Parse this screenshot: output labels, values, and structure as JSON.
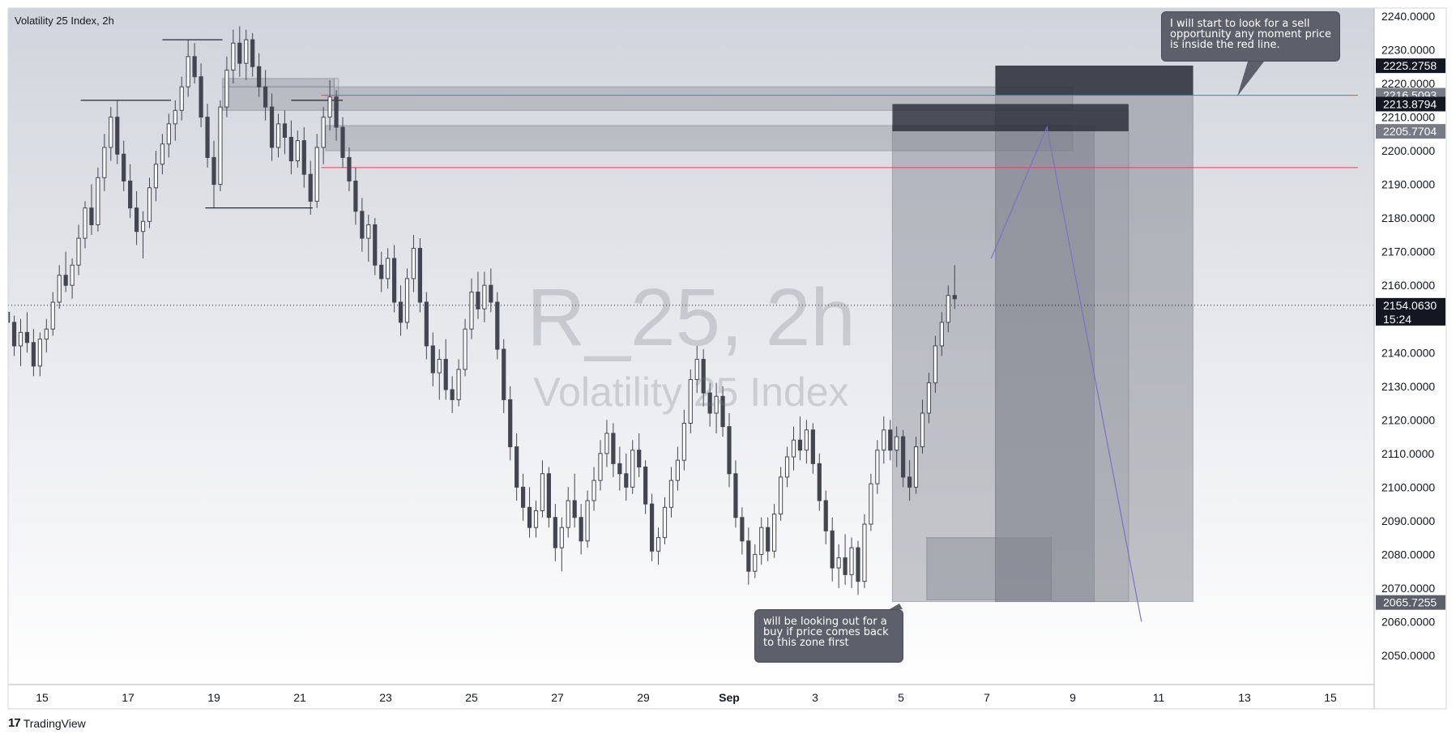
{
  "symbol_title": "Volatility 25 Index, 2h",
  "watermark": {
    "symbol": "R_25, 2h",
    "description": "Volatility 25 Index"
  },
  "brand": "TradingView",
  "colors": {
    "background_top": "#d1d4dc",
    "background_bottom": "#ffffff",
    "candle": "#434651",
    "zone_fill": "#787b86",
    "dark_box": "#2a2e39",
    "red_line": "#e04a4a",
    "projection_line": "#7e6fc9",
    "note_bg": "#5d606b"
  },
  "chart_data": {
    "type": "candlestick",
    "title": "Volatility 25 Index, 2h",
    "ylim": [
      2042,
      2244
    ],
    "y_ticks": [
      "2240.0000",
      "2230.0000",
      "2220.0000",
      "2210.0000",
      "2200.0000",
      "2190.0000",
      "2180.0000",
      "2170.0000",
      "2160.0000",
      "2140.0000",
      "2130.0000",
      "2120.0000",
      "2110.0000",
      "2100.0000",
      "2090.0000",
      "2080.0000",
      "2070.0000",
      "2060.0000",
      "2050.0000"
    ],
    "x_ticks": [
      "15",
      "17",
      "19",
      "21",
      "23",
      "25",
      "27",
      "29",
      "Sep",
      "3",
      "5",
      "7",
      "9",
      "11",
      "13",
      "15"
    ],
    "x_range_days": [
      14.2,
      46.3
    ],
    "price_badges": [
      {
        "price": 2225.2758,
        "label": "2225.2758",
        "color": "#131722"
      },
      {
        "price": 2216.5093,
        "label": "2216.5093",
        "color": "#787b86"
      },
      {
        "price": 2213.8794,
        "label": "2213.8794",
        "color": "#131722"
      },
      {
        "price": 2205.7704,
        "label": "2205.7704",
        "color": "#787b86"
      },
      {
        "price": 2154.063,
        "label": "2154.0630",
        "color": "#131722",
        "sub": "15:24"
      },
      {
        "price": 2065.7255,
        "label": "2065.7255",
        "color": "#5d606b"
      }
    ],
    "last_price": 2154.063,
    "horizontal_lines": [
      {
        "price": 2216.5,
        "color": "red"
      },
      {
        "price": 2195.0,
        "color": "red"
      }
    ],
    "swing_levels": [
      {
        "price": 2233.0,
        "from": 17.8,
        "to": 19.2
      },
      {
        "price": 2215.0,
        "from": 15.9,
        "to": 18.0
      },
      {
        "price": 2183.0,
        "from": 18.8,
        "to": 21.3
      },
      {
        "price": 2215.0,
        "from": 20.8,
        "to": 22.0
      }
    ],
    "zones": [
      {
        "top": 2219.0,
        "bottom": 2212.0,
        "from": 19.2,
        "to": 39.0,
        "opacity": 0.32
      },
      {
        "top": 2221.5,
        "bottom": 2219.0,
        "from": 19.2,
        "to": 21.8,
        "opacity": 0.32
      },
      {
        "top": 2221.5,
        "bottom": 2212.0,
        "from": 21.8,
        "to": 21.9,
        "opacity": 0.1
      },
      {
        "top": 2207.5,
        "bottom": 2200.0,
        "from": 21.6,
        "to": 39.0,
        "opacity": 0.32
      },
      {
        "top": 2085.0,
        "bottom": 2066.5,
        "from": 35.6,
        "to": 38.5,
        "opacity": 0.36
      },
      {
        "top": 2207.5,
        "bottom": 2066.0,
        "from": 34.8,
        "to": 39.5,
        "opacity": 0.4
      },
      {
        "top": 2225.2,
        "bottom": 2066.0,
        "from": 37.2,
        "to": 41.8,
        "opacity": 0.45
      },
      {
        "top": 2212.0,
        "bottom": 2066.0,
        "from": 37.2,
        "to": 40.3,
        "opacity": 0.2
      }
    ],
    "dark_boxes": [
      {
        "top": 2225.3,
        "bottom": 2216.5,
        "from": 37.2,
        "to": 41.8
      },
      {
        "top": 2213.9,
        "bottom": 2205.8,
        "from": 34.8,
        "to": 40.3
      }
    ],
    "projection": [
      {
        "x": 37.1,
        "y": 2168.0
      },
      {
        "x": 38.4,
        "y": 2207.0
      },
      {
        "x": 40.6,
        "y": 2060.0
      }
    ],
    "candles": [
      [
        14.2,
        2152,
        2154,
        2147,
        2149
      ],
      [
        14.35,
        2149,
        2151,
        2139,
        2142
      ],
      [
        14.5,
        2142,
        2150,
        2136,
        2146
      ],
      [
        14.65,
        2146,
        2152,
        2140,
        2143
      ],
      [
        14.8,
        2143,
        2147,
        2133,
        2136
      ],
      [
        14.95,
        2136,
        2146,
        2133,
        2144
      ],
      [
        15.1,
        2144,
        2150,
        2140,
        2147
      ],
      [
        15.25,
        2147,
        2158,
        2145,
        2155
      ],
      [
        15.4,
        2155,
        2166,
        2153,
        2163
      ],
      [
        15.55,
        2163,
        2170,
        2158,
        2160
      ],
      [
        15.7,
        2160,
        2168,
        2156,
        2166
      ],
      [
        15.85,
        2166,
        2178,
        2163,
        2174
      ],
      [
        16.0,
        2174,
        2185,
        2171,
        2183
      ],
      [
        16.15,
        2183,
        2190,
        2175,
        2178
      ],
      [
        16.3,
        2178,
        2195,
        2176,
        2192
      ],
      [
        16.45,
        2192,
        2205,
        2188,
        2201
      ],
      [
        16.6,
        2201,
        2213,
        2197,
        2210
      ],
      [
        16.75,
        2210,
        2215,
        2196,
        2199
      ],
      [
        16.9,
        2199,
        2203,
        2188,
        2191
      ],
      [
        17.05,
        2191,
        2196,
        2180,
        2183
      ],
      [
        17.2,
        2183,
        2188,
        2172,
        2176
      ],
      [
        17.35,
        2176,
        2182,
        2168,
        2179
      ],
      [
        17.5,
        2179,
        2192,
        2177,
        2189
      ],
      [
        17.65,
        2189,
        2200,
        2185,
        2196
      ],
      [
        17.8,
        2196,
        2205,
        2193,
        2202
      ],
      [
        17.95,
        2202,
        2211,
        2198,
        2208
      ],
      [
        18.1,
        2208,
        2215,
        2203,
        2212
      ],
      [
        18.25,
        2212,
        2222,
        2209,
        2219
      ],
      [
        18.4,
        2219,
        2233,
        2216,
        2228
      ],
      [
        18.55,
        2228,
        2232,
        2220,
        2222
      ],
      [
        18.7,
        2222,
        2226,
        2207,
        2210
      ],
      [
        18.85,
        2210,
        2214,
        2195,
        2198
      ],
      [
        19.0,
        2198,
        2203,
        2183,
        2190
      ],
      [
        19.15,
        2190,
        2215,
        2188,
        2213
      ],
      [
        19.3,
        2213,
        2228,
        2210,
        2224
      ],
      [
        19.45,
        2224,
        2236,
        2220,
        2232
      ],
      [
        19.6,
        2232,
        2237,
        2222,
        2226
      ],
      [
        19.75,
        2226,
        2236,
        2221,
        2233
      ],
      [
        19.9,
        2233,
        2235,
        2222,
        2225
      ],
      [
        20.05,
        2225,
        2229,
        2216,
        2219
      ],
      [
        20.2,
        2219,
        2224,
        2209,
        2213
      ],
      [
        20.35,
        2213,
        2217,
        2197,
        2201
      ],
      [
        20.5,
        2201,
        2211,
        2198,
        2208
      ],
      [
        20.65,
        2208,
        2212,
        2199,
        2204
      ],
      [
        20.8,
        2204,
        2209,
        2193,
        2197
      ],
      [
        20.95,
        2197,
        2206,
        2195,
        2203
      ],
      [
        21.1,
        2203,
        2207,
        2189,
        2193
      ],
      [
        21.25,
        2193,
        2197,
        2181,
        2185
      ],
      [
        21.4,
        2185,
        2205,
        2183,
        2201
      ],
      [
        21.55,
        2201,
        2213,
        2196,
        2210
      ],
      [
        21.7,
        2210,
        2221,
        2206,
        2216
      ],
      [
        21.85,
        2216,
        2218,
        2203,
        2207
      ],
      [
        22.0,
        2207,
        2210,
        2195,
        2198
      ],
      [
        22.15,
        2198,
        2201,
        2188,
        2191
      ],
      [
        22.3,
        2191,
        2195,
        2178,
        2182
      ],
      [
        22.45,
        2182,
        2186,
        2170,
        2174
      ],
      [
        22.6,
        2174,
        2181,
        2167,
        2178
      ],
      [
        22.75,
        2178,
        2180,
        2163,
        2166
      ],
      [
        22.9,
        2166,
        2170,
        2158,
        2162
      ],
      [
        23.05,
        2162,
        2171,
        2159,
        2168
      ],
      [
        23.2,
        2168,
        2172,
        2152,
        2155
      ],
      [
        23.35,
        2155,
        2160,
        2145,
        2149
      ],
      [
        23.5,
        2149,
        2165,
        2147,
        2162
      ],
      [
        23.65,
        2162,
        2175,
        2158,
        2171
      ],
      [
        23.8,
        2171,
        2174,
        2152,
        2155
      ],
      [
        23.95,
        2155,
        2158,
        2138,
        2142
      ],
      [
        24.1,
        2142,
        2146,
        2130,
        2134
      ],
      [
        24.25,
        2134,
        2141,
        2126,
        2138
      ],
      [
        24.4,
        2138,
        2144,
        2126,
        2129
      ],
      [
        24.55,
        2129,
        2133,
        2122,
        2126
      ],
      [
        24.7,
        2126,
        2138,
        2124,
        2135
      ],
      [
        24.85,
        2135,
        2150,
        2133,
        2147
      ],
      [
        25.0,
        2147,
        2162,
        2144,
        2158
      ],
      [
        25.15,
        2158,
        2164,
        2150,
        2153
      ],
      [
        25.3,
        2153,
        2164,
        2149,
        2160
      ],
      [
        25.45,
        2160,
        2165,
        2152,
        2155
      ],
      [
        25.6,
        2155,
        2158,
        2138,
        2141
      ],
      [
        25.75,
        2141,
        2144,
        2122,
        2126
      ],
      [
        25.9,
        2126,
        2130,
        2108,
        2112
      ],
      [
        26.05,
        2112,
        2116,
        2096,
        2100
      ],
      [
        26.2,
        2100,
        2104,
        2090,
        2094
      ],
      [
        26.35,
        2094,
        2100,
        2085,
        2088
      ],
      [
        26.5,
        2088,
        2096,
        2085,
        2093
      ],
      [
        26.65,
        2093,
        2108,
        2091,
        2104
      ],
      [
        26.8,
        2104,
        2106,
        2088,
        2091
      ],
      [
        26.95,
        2091,
        2095,
        2078,
        2082
      ],
      [
        27.1,
        2082,
        2091,
        2075,
        2088
      ],
      [
        27.25,
        2088,
        2100,
        2085,
        2096
      ],
      [
        27.4,
        2096,
        2104,
        2088,
        2091
      ],
      [
        27.55,
        2091,
        2095,
        2080,
        2084
      ],
      [
        27.7,
        2084,
        2099,
        2082,
        2096
      ],
      [
        27.85,
        2096,
        2106,
        2093,
        2102
      ],
      [
        28.0,
        2102,
        2114,
        2099,
        2110
      ],
      [
        28.15,
        2110,
        2120,
        2106,
        2116
      ],
      [
        28.3,
        2116,
        2119,
        2103,
        2107
      ],
      [
        28.45,
        2107,
        2112,
        2099,
        2104
      ],
      [
        28.6,
        2104,
        2110,
        2096,
        2100
      ],
      [
        28.75,
        2100,
        2114,
        2098,
        2111
      ],
      [
        28.9,
        2111,
        2116,
        2103,
        2106
      ],
      [
        29.05,
        2106,
        2108,
        2092,
        2095
      ],
      [
        29.2,
        2095,
        2098,
        2078,
        2081
      ],
      [
        29.35,
        2081,
        2088,
        2077,
        2085
      ],
      [
        29.5,
        2085,
        2097,
        2083,
        2094
      ],
      [
        29.65,
        2094,
        2106,
        2091,
        2102
      ],
      [
        29.8,
        2102,
        2112,
        2099,
        2108
      ],
      [
        29.95,
        2108,
        2123,
        2105,
        2119
      ],
      [
        30.1,
        2119,
        2135,
        2116,
        2132
      ],
      [
        30.25,
        2132,
        2142,
        2128,
        2138
      ],
      [
        30.4,
        2138,
        2141,
        2124,
        2128
      ],
      [
        30.55,
        2128,
        2131,
        2118,
        2122
      ],
      [
        30.7,
        2122,
        2131,
        2116,
        2127
      ],
      [
        30.85,
        2127,
        2130,
        2115,
        2118
      ],
      [
        31.0,
        2118,
        2122,
        2100,
        2104
      ],
      [
        31.15,
        2104,
        2108,
        2088,
        2091
      ],
      [
        31.3,
        2091,
        2094,
        2080,
        2084
      ],
      [
        31.45,
        2084,
        2088,
        2071,
        2075
      ],
      [
        31.6,
        2075,
        2083,
        2073,
        2080
      ],
      [
        31.75,
        2080,
        2091,
        2077,
        2088
      ],
      [
        31.9,
        2088,
        2091,
        2078,
        2081
      ],
      [
        32.05,
        2081,
        2095,
        2079,
        2092
      ],
      [
        32.2,
        2092,
        2106,
        2090,
        2103
      ],
      [
        32.35,
        2103,
        2112,
        2100,
        2109
      ],
      [
        32.5,
        2109,
        2118,
        2105,
        2114
      ],
      [
        32.65,
        2114,
        2121,
        2108,
        2111
      ],
      [
        32.8,
        2111,
        2120,
        2107,
        2117
      ],
      [
        32.95,
        2117,
        2119,
        2104,
        2107
      ],
      [
        33.1,
        2107,
        2110,
        2093,
        2096
      ],
      [
        33.25,
        2096,
        2099,
        2083,
        2087
      ],
      [
        33.4,
        2087,
        2091,
        2072,
        2076
      ],
      [
        33.55,
        2076,
        2083,
        2070,
        2079
      ],
      [
        33.7,
        2079,
        2086,
        2071,
        2074
      ],
      [
        33.85,
        2074,
        2085,
        2070,
        2082
      ],
      [
        34.0,
        2082,
        2084,
        2068,
        2072
      ],
      [
        34.15,
        2072,
        2092,
        2070,
        2089
      ],
      [
        34.3,
        2089,
        2104,
        2087,
        2101
      ],
      [
        34.45,
        2101,
        2114,
        2098,
        2111
      ],
      [
        34.6,
        2111,
        2121,
        2107,
        2117
      ],
      [
        34.75,
        2117,
        2120,
        2108,
        2111
      ],
      [
        34.9,
        2111,
        2118,
        2106,
        2115
      ],
      [
        35.05,
        2115,
        2117,
        2100,
        2103
      ],
      [
        35.2,
        2103,
        2108,
        2096,
        2100
      ],
      [
        35.35,
        2100,
        2115,
        2098,
        2112
      ],
      [
        35.5,
        2112,
        2126,
        2110,
        2122
      ],
      [
        35.65,
        2122,
        2134,
        2119,
        2131
      ],
      [
        35.8,
        2131,
        2145,
        2128,
        2142
      ],
      [
        35.95,
        2142,
        2152,
        2139,
        2149
      ],
      [
        36.1,
        2149,
        2160,
        2146,
        2157
      ],
      [
        36.25,
        2157,
        2166,
        2153,
        2156
      ]
    ]
  },
  "notes": {
    "sell": "I will start to look for a sell opportunity any moment price is inside the red line.",
    "buy": "will be looking out for a buy if price comes back to this zone first"
  }
}
